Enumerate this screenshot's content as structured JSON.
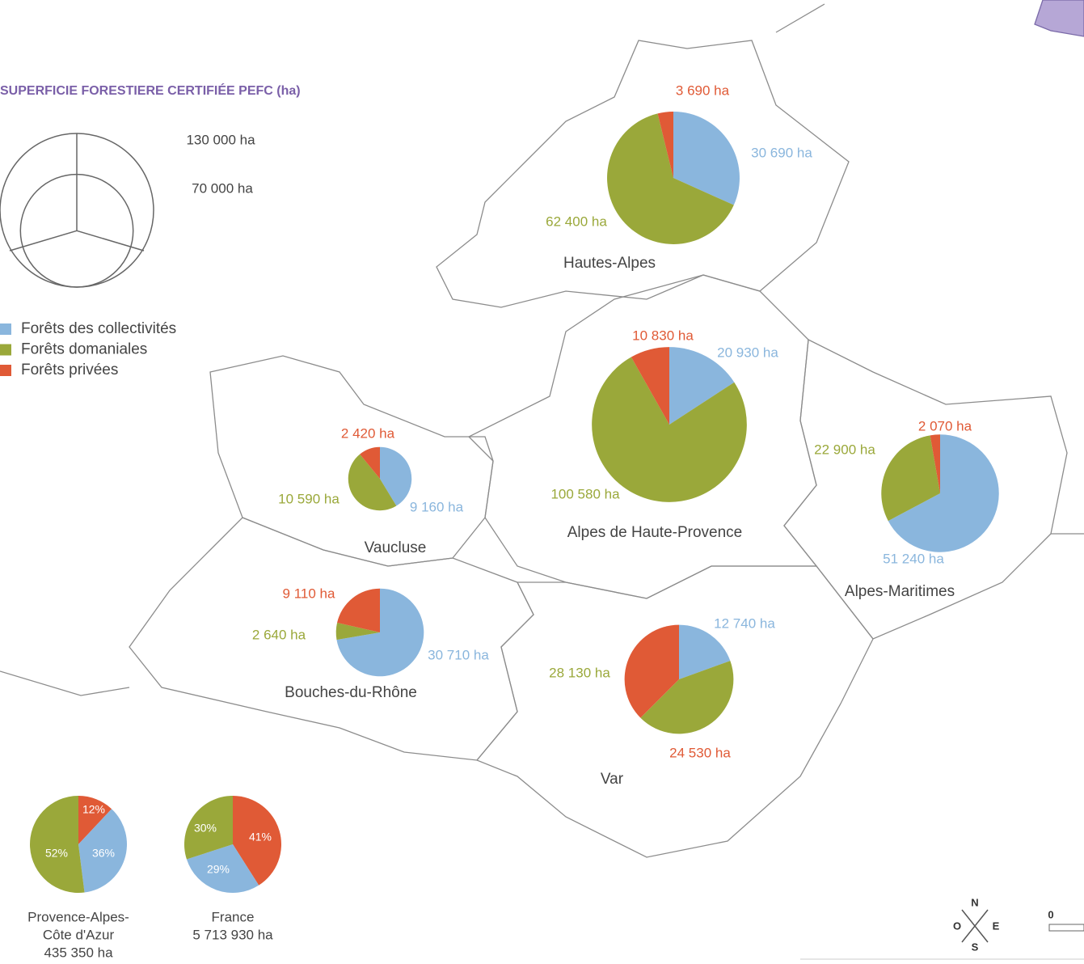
{
  "title": "SUPERFICIE FORESTIERE CERTIFIÉE PEFC (ha)",
  "size_legend": [
    {
      "value": 130000,
      "label": "130 000 ha"
    },
    {
      "value": 70000,
      "label": "70 000 ha"
    }
  ],
  "legend": [
    {
      "name": "Forêts des collectivités",
      "color": "#8ab6dd"
    },
    {
      "name": "Forêts domaniales",
      "color": "#9aa83a"
    },
    {
      "name": "Forêts privées",
      "color": "#e05a36"
    }
  ],
  "departments": [
    {
      "name": "Hautes-Alpes",
      "values": [
        30690,
        62400,
        3690
      ],
      "value_labels": [
        "30 690  ha",
        "62 400  ha",
        "3 690  ha"
      ],
      "colors": [
        "#8ab6dd",
        "#9aa83a",
        "#e05a36"
      ]
    },
    {
      "name": "Alpes de Haute-Provence",
      "values": [
        20930,
        100580,
        10830
      ],
      "value_labels": [
        "20 930  ha",
        "100 580  ha",
        "10 830 ha"
      ],
      "colors": [
        "#8ab6dd",
        "#9aa83a",
        "#e05a36"
      ]
    },
    {
      "name": "Alpes-Maritimes",
      "values": [
        51240,
        22900,
        2070
      ],
      "value_labels": [
        "51 240  ha",
        "22 900  ha",
        "2 070  ha"
      ],
      "colors": [
        "#8ab6dd",
        "#9aa83a",
        "#e05a36"
      ]
    },
    {
      "name": "Vaucluse",
      "values": [
        9160,
        10590,
        2420
      ],
      "value_labels": [
        "9 160  ha",
        "10 590  ha",
        "2 420 ha"
      ],
      "colors": [
        "#8ab6dd",
        "#9aa83a",
        "#e05a36"
      ]
    },
    {
      "name": "Bouches-du-Rhône",
      "values": [
        30710,
        2640,
        9110
      ],
      "value_labels": [
        "30 710 ha",
        "2 640  ha",
        "9 110 ha"
      ],
      "colors": [
        "#8ab6dd",
        "#9aa83a",
        "#e05a36"
      ]
    },
    {
      "name": "Var",
      "values": [
        12740,
        28130,
        24530
      ],
      "value_labels": [
        "12 740 ha",
        "28 130 ha",
        "24 530  ha"
      ],
      "colors": [
        "#8ab6dd",
        "#9aa83a",
        "#e05a36"
      ]
    }
  ],
  "summary": [
    {
      "name_lines": [
        "Provence-Alpes-",
        "Côte d'Azur"
      ],
      "total": 435350,
      "total_label": "435 350 ha",
      "values": [
        12,
        36,
        52
      ],
      "value_labels": [
        "12%",
        "36%",
        "52%"
      ],
      "colors": [
        "#e05a36",
        "#8ab6dd",
        "#9aa83a"
      ]
    },
    {
      "name_lines": [
        "France"
      ],
      "total": 5713930,
      "total_label": "5 713 930 ha",
      "values": [
        41,
        29,
        30
      ],
      "value_labels": [
        "41%",
        "29%",
        "30%"
      ],
      "colors": [
        "#e05a36",
        "#8ab6dd",
        "#9aa83a"
      ]
    }
  ],
  "compass": [
    "N",
    "O",
    "E",
    "S"
  ],
  "scale_start": "0"
}
